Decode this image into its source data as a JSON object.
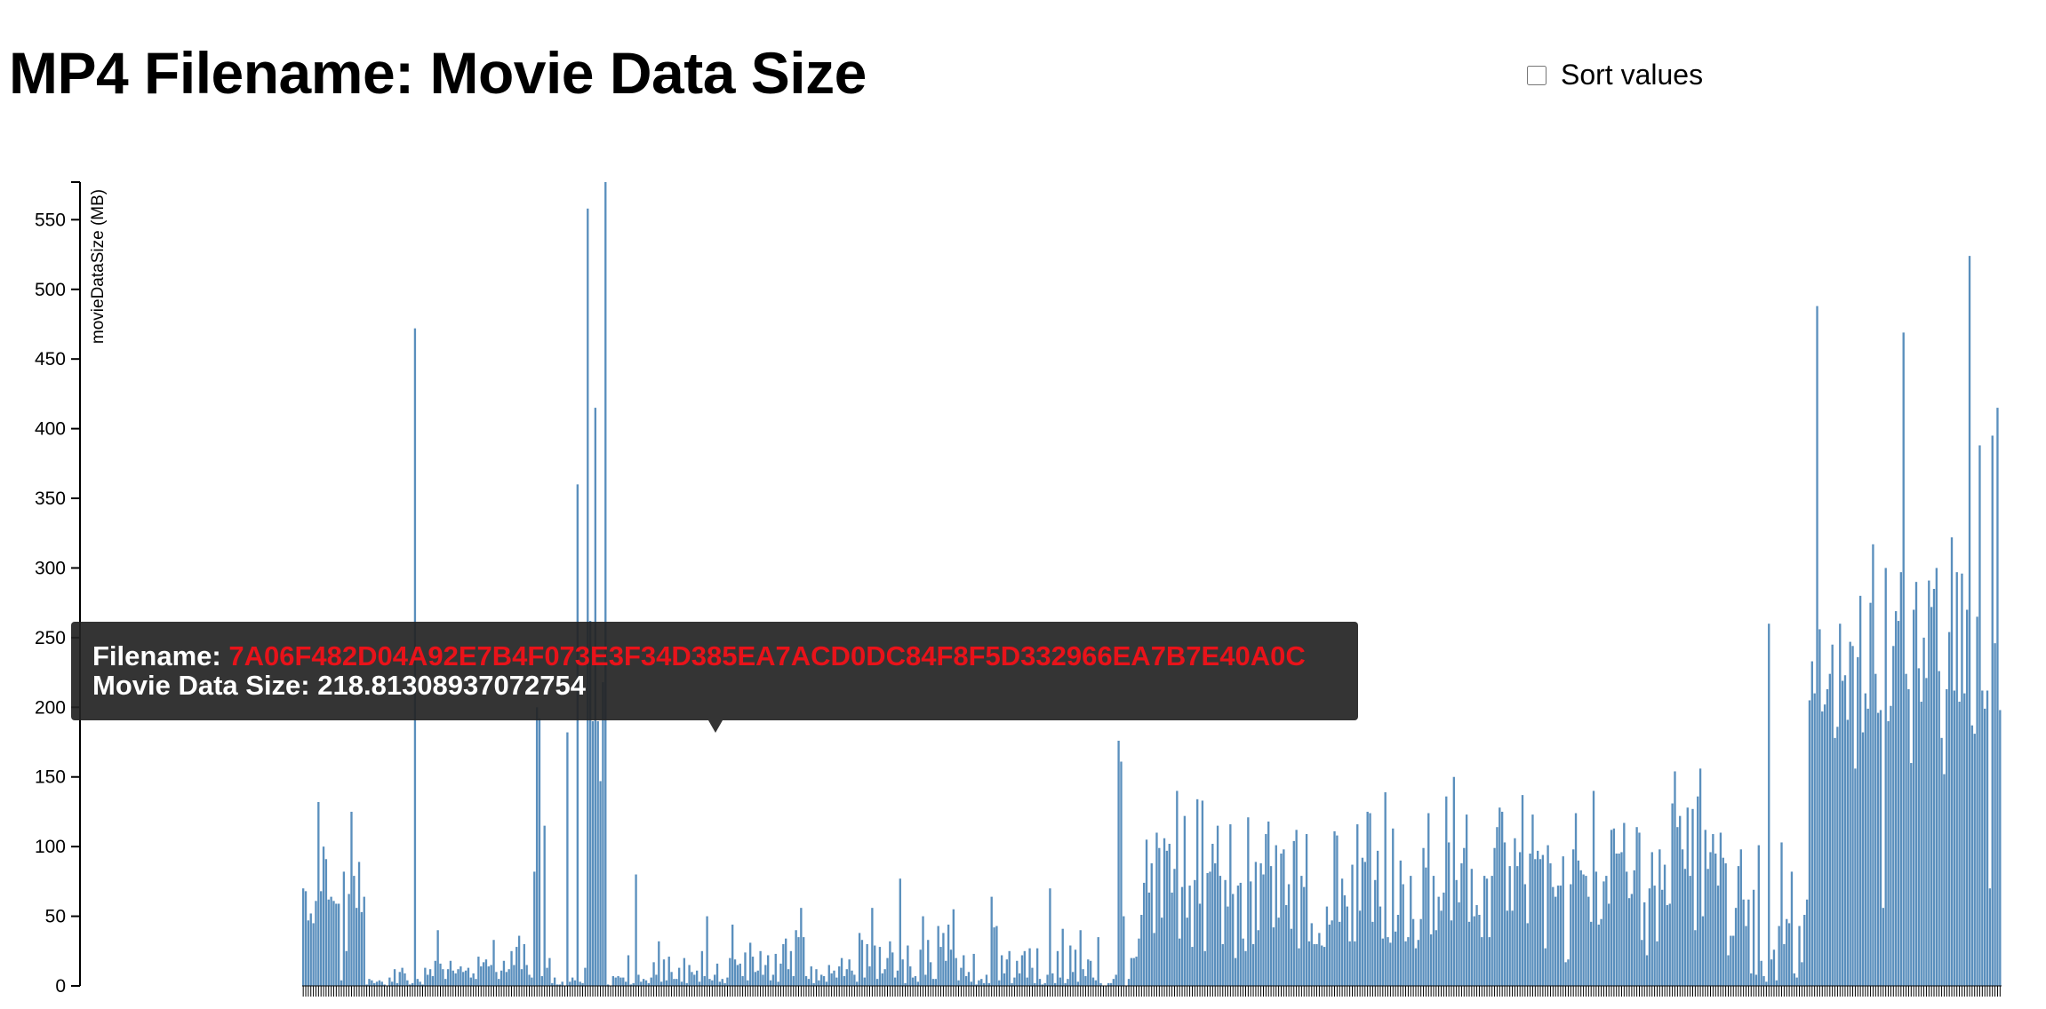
{
  "page": {
    "title": "MP4 Filename: Movie Data Size",
    "sort_label": "Sort values",
    "sort_checked": false
  },
  "tooltip": {
    "filename_label": "Filename: ",
    "filename_value": "7A06F482D04A92E7B4F073E3F34D385EA7ACD0DC84F8F5D332966EA7B7E40A0C",
    "size_label": "Movie Data Size: ",
    "size_value": "218.81308937072754"
  },
  "colors": {
    "bar": "#5a8fbd",
    "tooltip_bg": "#232323",
    "tooltip_highlight": "#e8131a"
  },
  "chart_data": {
    "type": "bar",
    "title": "MP4 Filename: Movie Data Size",
    "xlabel": "",
    "ylabel": "movieDataSize (MB)",
    "ylim": [
      0,
      577
    ],
    "yticks": [
      0,
      50,
      100,
      150,
      200,
      250,
      300,
      350,
      400,
      450,
      500,
      550
    ],
    "x_tick_labels": "not legible (one short tick per filename)",
    "grid": false,
    "values": [
      70,
      68,
      47,
      52,
      45,
      61,
      132,
      68,
      100,
      91,
      62,
      64,
      61,
      59,
      59,
      4,
      82,
      25,
      66,
      125,
      79,
      56,
      89,
      53,
      64,
      1,
      5,
      4,
      2,
      3,
      4,
      3,
      1,
      0,
      6,
      3,
      12,
      2,
      10,
      13,
      9,
      4,
      1,
      2,
      472,
      5,
      3,
      1,
      13,
      8,
      12,
      7,
      18,
      40,
      16,
      12,
      5,
      12,
      18,
      11,
      9,
      12,
      14,
      10,
      11,
      13,
      6,
      9,
      5,
      21,
      14,
      17,
      19,
      14,
      15,
      33,
      10,
      5,
      11,
      18,
      10,
      12,
      25,
      15,
      28,
      36,
      12,
      30,
      15,
      8,
      6,
      82,
      200,
      192,
      7,
      115,
      13,
      20,
      2,
      6,
      1,
      1,
      3,
      0,
      182,
      3,
      6,
      4,
      360,
      3,
      2,
      13,
      558,
      262,
      190,
      415,
      190,
      147,
      218,
      577,
      1,
      0,
      7,
      6,
      7,
      6,
      6,
      3,
      22,
      1,
      2,
      80,
      8,
      3,
      5,
      4,
      2,
      6,
      17,
      8,
      32,
      3,
      19,
      4,
      21,
      10,
      5,
      5,
      13,
      3,
      20,
      2,
      15,
      10,
      8,
      11,
      3,
      25,
      7,
      50,
      5,
      4,
      8,
      16,
      3,
      5,
      2,
      6,
      20,
      44,
      19,
      15,
      16,
      7,
      24,
      4,
      31,
      21,
      10,
      11,
      25,
      8,
      15,
      22,
      4,
      8,
      23,
      3,
      16,
      30,
      34,
      12,
      25,
      7,
      40,
      35,
      56,
      35,
      7,
      5,
      14,
      2,
      12,
      4,
      8,
      7,
      3,
      15,
      9,
      11,
      6,
      14,
      20,
      7,
      12,
      19,
      11,
      8,
      3,
      38,
      33,
      6,
      30,
      14,
      56,
      29,
      5,
      28,
      9,
      12,
      20,
      32,
      24,
      6,
      11,
      77,
      19,
      2,
      29,
      14,
      6,
      7,
      3,
      26,
      50,
      8,
      33,
      17,
      5,
      5,
      43,
      28,
      38,
      18,
      44,
      26,
      55,
      20,
      4,
      13,
      22,
      7,
      10,
      3,
      23,
      1,
      4,
      5,
      2,
      8,
      2,
      64,
      42,
      43,
      4,
      22,
      9,
      19,
      25,
      2,
      6,
      18,
      9,
      22,
      25,
      6,
      27,
      13,
      2,
      27,
      5,
      1,
      2,
      8,
      70,
      9,
      2,
      25,
      6,
      41,
      2,
      5,
      29,
      10,
      26,
      3,
      40,
      12,
      7,
      19,
      18,
      6,
      4,
      35,
      2,
      0,
      0,
      2,
      2,
      5,
      8,
      176,
      161,
      50,
      0,
      5,
      20,
      20,
      21,
      34,
      51,
      74,
      105,
      67,
      88,
      38,
      110,
      99,
      49,
      106,
      97,
      102,
      67,
      84,
      140,
      34,
      71,
      122,
      49,
      72,
      28,
      76,
      134,
      59,
      133,
      25,
      81,
      82,
      102,
      88,
      115,
      79,
      30,
      76,
      57,
      116,
      66,
      20,
      72,
      74,
      34,
      25,
      121,
      75,
      30,
      89,
      40,
      88,
      80,
      109,
      118,
      86,
      42,
      101,
      49,
      95,
      98,
      58,
      73,
      41,
      104,
      112,
      27,
      79,
      71,
      109,
      32,
      45,
      30,
      30,
      38,
      29,
      28,
      57,
      44,
      47,
      111,
      108,
      46,
      77,
      65,
      57,
      32,
      87,
      32,
      116,
      54,
      92,
      89,
      125,
      124,
      46,
      76,
      97,
      57,
      34,
      139,
      35,
      31,
      113,
      39,
      51,
      90,
      73,
      32,
      35,
      79,
      48,
      27,
      33,
      48,
      99,
      85,
      124,
      37,
      79,
      40,
      64,
      54,
      67,
      136,
      103,
      47,
      150,
      76,
      60,
      88,
      99,
      123,
      46,
      84,
      50,
      58,
      51,
      35,
      79,
      77,
      35,
      79,
      99,
      114,
      128,
      125,
      103,
      54,
      86,
      54,
      106,
      86,
      96,
      137,
      73,
      45,
      95,
      123,
      91,
      97,
      91,
      94,
      27,
      101,
      88,
      71,
      64,
      72,
      72,
      93,
      17,
      19,
      73,
      98,
      124,
      90,
      83,
      80,
      79,
      64,
      46,
      140,
      82,
      44,
      48,
      75,
      79,
      59,
      112,
      113,
      95,
      95,
      96,
      117,
      82,
      63,
      66,
      83,
      114,
      110,
      33,
      60,
      22,
      70,
      96,
      72,
      32,
      98,
      69,
      87,
      58,
      59,
      131,
      154,
      114,
      122,
      98,
      84,
      128,
      79,
      127,
      40,
      136,
      156,
      50,
      112,
      84,
      96,
      109,
      95,
      72,
      110,
      92,
      88,
      22,
      36,
      36,
      56,
      86,
      98,
      62,
      43,
      62,
      9,
      69,
      8,
      101,
      18,
      7,
      3,
      260,
      19,
      26,
      4,
      43,
      103,
      30,
      48,
      45,
      82,
      9,
      6,
      43,
      17,
      51,
      62,
      205,
      233,
      210,
      488,
      256,
      197,
      202,
      213,
      224,
      245,
      178,
      186,
      260,
      219,
      223,
      191,
      247,
      244,
      156,
      236,
      280,
      182,
      210,
      199,
      275,
      317,
      224,
      196,
      198,
      56,
      300,
      190,
      201,
      244,
      269,
      262,
      297,
      469,
      224,
      213,
      160,
      270,
      290,
      228,
      204,
      250,
      221,
      291,
      272,
      285,
      300,
      226,
      178,
      152,
      213,
      254,
      322,
      212,
      297,
      204,
      296,
      210,
      270,
      524,
      187,
      181,
      265,
      388,
      212,
      199,
      212,
      70,
      395,
      246,
      415,
      198
    ]
  }
}
